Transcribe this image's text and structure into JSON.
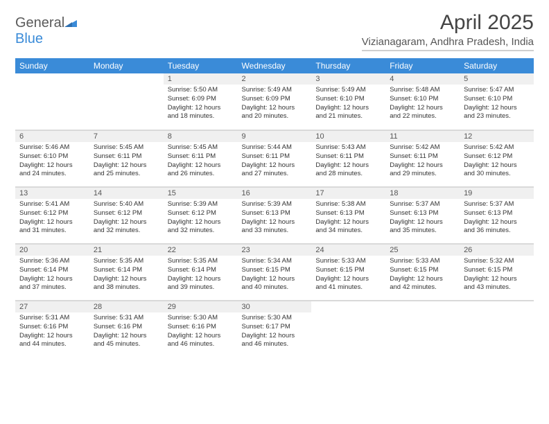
{
  "logo": {
    "text1": "General",
    "text2": "Blue"
  },
  "title": "April 2025",
  "location": "Vizianagaram, Andhra Pradesh, India",
  "colors": {
    "header_bg": "#3a8bd8",
    "header_text": "#ffffff",
    "daynum_bg": "#f0f0f0",
    "border": "#d9d9d9",
    "text": "#333333"
  },
  "weekdays": [
    "Sunday",
    "Monday",
    "Tuesday",
    "Wednesday",
    "Thursday",
    "Friday",
    "Saturday"
  ],
  "weeks": [
    [
      {
        "n": "",
        "l1": "",
        "l2": "",
        "l3": "",
        "l4": ""
      },
      {
        "n": "",
        "l1": "",
        "l2": "",
        "l3": "",
        "l4": ""
      },
      {
        "n": "1",
        "l1": "Sunrise: 5:50 AM",
        "l2": "Sunset: 6:09 PM",
        "l3": "Daylight: 12 hours",
        "l4": "and 18 minutes."
      },
      {
        "n": "2",
        "l1": "Sunrise: 5:49 AM",
        "l2": "Sunset: 6:09 PM",
        "l3": "Daylight: 12 hours",
        "l4": "and 20 minutes."
      },
      {
        "n": "3",
        "l1": "Sunrise: 5:49 AM",
        "l2": "Sunset: 6:10 PM",
        "l3": "Daylight: 12 hours",
        "l4": "and 21 minutes."
      },
      {
        "n": "4",
        "l1": "Sunrise: 5:48 AM",
        "l2": "Sunset: 6:10 PM",
        "l3": "Daylight: 12 hours",
        "l4": "and 22 minutes."
      },
      {
        "n": "5",
        "l1": "Sunrise: 5:47 AM",
        "l2": "Sunset: 6:10 PM",
        "l3": "Daylight: 12 hours",
        "l4": "and 23 minutes."
      }
    ],
    [
      {
        "n": "6",
        "l1": "Sunrise: 5:46 AM",
        "l2": "Sunset: 6:10 PM",
        "l3": "Daylight: 12 hours",
        "l4": "and 24 minutes."
      },
      {
        "n": "7",
        "l1": "Sunrise: 5:45 AM",
        "l2": "Sunset: 6:11 PM",
        "l3": "Daylight: 12 hours",
        "l4": "and 25 minutes."
      },
      {
        "n": "8",
        "l1": "Sunrise: 5:45 AM",
        "l2": "Sunset: 6:11 PM",
        "l3": "Daylight: 12 hours",
        "l4": "and 26 minutes."
      },
      {
        "n": "9",
        "l1": "Sunrise: 5:44 AM",
        "l2": "Sunset: 6:11 PM",
        "l3": "Daylight: 12 hours",
        "l4": "and 27 minutes."
      },
      {
        "n": "10",
        "l1": "Sunrise: 5:43 AM",
        "l2": "Sunset: 6:11 PM",
        "l3": "Daylight: 12 hours",
        "l4": "and 28 minutes."
      },
      {
        "n": "11",
        "l1": "Sunrise: 5:42 AM",
        "l2": "Sunset: 6:11 PM",
        "l3": "Daylight: 12 hours",
        "l4": "and 29 minutes."
      },
      {
        "n": "12",
        "l1": "Sunrise: 5:42 AM",
        "l2": "Sunset: 6:12 PM",
        "l3": "Daylight: 12 hours",
        "l4": "and 30 minutes."
      }
    ],
    [
      {
        "n": "13",
        "l1": "Sunrise: 5:41 AM",
        "l2": "Sunset: 6:12 PM",
        "l3": "Daylight: 12 hours",
        "l4": "and 31 minutes."
      },
      {
        "n": "14",
        "l1": "Sunrise: 5:40 AM",
        "l2": "Sunset: 6:12 PM",
        "l3": "Daylight: 12 hours",
        "l4": "and 32 minutes."
      },
      {
        "n": "15",
        "l1": "Sunrise: 5:39 AM",
        "l2": "Sunset: 6:12 PM",
        "l3": "Daylight: 12 hours",
        "l4": "and 32 minutes."
      },
      {
        "n": "16",
        "l1": "Sunrise: 5:39 AM",
        "l2": "Sunset: 6:13 PM",
        "l3": "Daylight: 12 hours",
        "l4": "and 33 minutes."
      },
      {
        "n": "17",
        "l1": "Sunrise: 5:38 AM",
        "l2": "Sunset: 6:13 PM",
        "l3": "Daylight: 12 hours",
        "l4": "and 34 minutes."
      },
      {
        "n": "18",
        "l1": "Sunrise: 5:37 AM",
        "l2": "Sunset: 6:13 PM",
        "l3": "Daylight: 12 hours",
        "l4": "and 35 minutes."
      },
      {
        "n": "19",
        "l1": "Sunrise: 5:37 AM",
        "l2": "Sunset: 6:13 PM",
        "l3": "Daylight: 12 hours",
        "l4": "and 36 minutes."
      }
    ],
    [
      {
        "n": "20",
        "l1": "Sunrise: 5:36 AM",
        "l2": "Sunset: 6:14 PM",
        "l3": "Daylight: 12 hours",
        "l4": "and 37 minutes."
      },
      {
        "n": "21",
        "l1": "Sunrise: 5:35 AM",
        "l2": "Sunset: 6:14 PM",
        "l3": "Daylight: 12 hours",
        "l4": "and 38 minutes."
      },
      {
        "n": "22",
        "l1": "Sunrise: 5:35 AM",
        "l2": "Sunset: 6:14 PM",
        "l3": "Daylight: 12 hours",
        "l4": "and 39 minutes."
      },
      {
        "n": "23",
        "l1": "Sunrise: 5:34 AM",
        "l2": "Sunset: 6:15 PM",
        "l3": "Daylight: 12 hours",
        "l4": "and 40 minutes."
      },
      {
        "n": "24",
        "l1": "Sunrise: 5:33 AM",
        "l2": "Sunset: 6:15 PM",
        "l3": "Daylight: 12 hours",
        "l4": "and 41 minutes."
      },
      {
        "n": "25",
        "l1": "Sunrise: 5:33 AM",
        "l2": "Sunset: 6:15 PM",
        "l3": "Daylight: 12 hours",
        "l4": "and 42 minutes."
      },
      {
        "n": "26",
        "l1": "Sunrise: 5:32 AM",
        "l2": "Sunset: 6:15 PM",
        "l3": "Daylight: 12 hours",
        "l4": "and 43 minutes."
      }
    ],
    [
      {
        "n": "27",
        "l1": "Sunrise: 5:31 AM",
        "l2": "Sunset: 6:16 PM",
        "l3": "Daylight: 12 hours",
        "l4": "and 44 minutes."
      },
      {
        "n": "28",
        "l1": "Sunrise: 5:31 AM",
        "l2": "Sunset: 6:16 PM",
        "l3": "Daylight: 12 hours",
        "l4": "and 45 minutes."
      },
      {
        "n": "29",
        "l1": "Sunrise: 5:30 AM",
        "l2": "Sunset: 6:16 PM",
        "l3": "Daylight: 12 hours",
        "l4": "and 46 minutes."
      },
      {
        "n": "30",
        "l1": "Sunrise: 5:30 AM",
        "l2": "Sunset: 6:17 PM",
        "l3": "Daylight: 12 hours",
        "l4": "and 46 minutes."
      },
      {
        "n": "",
        "l1": "",
        "l2": "",
        "l3": "",
        "l4": ""
      },
      {
        "n": "",
        "l1": "",
        "l2": "",
        "l3": "",
        "l4": ""
      },
      {
        "n": "",
        "l1": "",
        "l2": "",
        "l3": "",
        "l4": ""
      }
    ]
  ]
}
